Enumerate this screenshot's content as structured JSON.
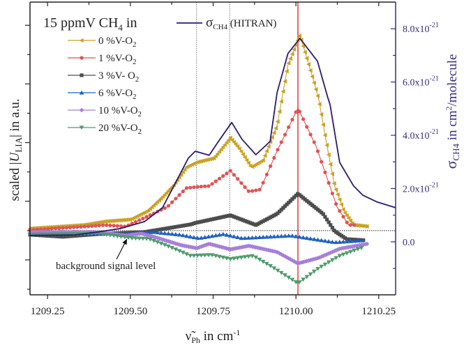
{
  "chart_data": {
    "type": "line",
    "title": "",
    "xlabel": {
      "symbol": "ν̃",
      "sub": "Ph",
      "rest": " in cm",
      "sup": "-1"
    },
    "ylabel_left": {
      "pre": "scaled |",
      "sym": "U",
      "sub": "LIA",
      "post": "| in a.u."
    },
    "ylabel_right": {
      "sym": "σ",
      "sub": "CH4",
      "rest": " in cm",
      "sup": "2",
      "rest2": "/molecule"
    },
    "xlim": [
      1209.197,
      1210.301
    ],
    "ylim_left": [
      -2.19,
      7.79
    ],
    "ylim_right": [
      -1.99,
      9.0
    ],
    "x_ticks": [
      1209.25,
      1209.5,
      1209.75,
      1210.0,
      1210.25
    ],
    "x_tick_labels": [
      "1209.25",
      "1209.50",
      "1209.75",
      "1210.00",
      "1210.25"
    ],
    "right_ticks": [
      0,
      2,
      4,
      6,
      8
    ],
    "right_tick_labels": [
      {
        "base": "0.0",
        "sup": ""
      },
      {
        "base": "2.0x10",
        "sup": "-21"
      },
      {
        "base": "4.0x10",
        "sup": "-21"
      },
      {
        "base": "6.0x10",
        "sup": "-21"
      },
      {
        "base": "8.0x10",
        "sup": "-21"
      }
    ],
    "right_unit_note": "values in 1e-21 cm^2/molecule",
    "background_level": 0,
    "vlines": [
      {
        "x": 1209.7,
        "style": "dotted",
        "color": "#777777"
      },
      {
        "x": 1209.8,
        "style": "dotted",
        "color": "#777777"
      },
      {
        "x": 1210.006,
        "style": "solid",
        "color": "#e8434a"
      }
    ],
    "legend": {
      "heading": {
        "pre": "15 ppmV CH",
        "sub": "4",
        "post": " in"
      },
      "placement": "top-left"
    },
    "annotation": {
      "text": "background signal level",
      "arrow_to": [
        1209.49,
        -0.28
      ]
    },
    "series": [
      {
        "name": "0 %V-O",
        "sub": "2",
        "axis": "left",
        "color": "#c9a227",
        "marker": "triangle-left",
        "x": [
          1209.197,
          1209.359,
          1209.423,
          1209.501,
          1209.555,
          1209.597,
          1209.633,
          1209.669,
          1209.701,
          1209.753,
          1209.802,
          1209.829,
          1209.865,
          1209.901,
          1209.943,
          1209.976,
          1210.012,
          1210.054,
          1210.069,
          1210.092,
          1210.117,
          1210.145,
          1210.174,
          1210.218
        ],
        "y": [
          0.07,
          0.19,
          0.31,
          0.38,
          0.69,
          1.14,
          1.57,
          2.16,
          2.33,
          2.47,
          3.16,
          2.8,
          2.16,
          2.4,
          3.59,
          5.65,
          6.67,
          5.08,
          4.47,
          3.0,
          1.52,
          0.66,
          0.19,
          0.14
        ]
      },
      {
        "name": "1 %V-O",
        "sub": "2",
        "axis": "left",
        "color": "#e05252",
        "marker": "circle",
        "x": [
          1209.197,
          1209.366,
          1209.423,
          1209.486,
          1209.555,
          1209.612,
          1209.669,
          1209.711,
          1209.738,
          1209.802,
          1209.858,
          1209.892,
          1209.943,
          1210.006,
          1210.061,
          1210.09,
          1210.124,
          1210.159,
          1210.181
        ],
        "y": [
          0.02,
          0.14,
          0.19,
          0.14,
          0.5,
          0.81,
          1.45,
          1.5,
          1.52,
          2.04,
          1.33,
          1.4,
          2.71,
          4.18,
          2.87,
          1.92,
          0.81,
          0.19,
          0.19
        ]
      },
      {
        "name": "3 %V- O",
        "sub": "2",
        "axis": "left",
        "color": "#4d4d4d",
        "marker": "square",
        "x": [
          1209.197,
          1209.296,
          1209.402,
          1209.543,
          1209.597,
          1209.682,
          1209.696,
          1209.802,
          1209.879,
          1209.943,
          1210.006,
          1210.082,
          1210.117,
          1210.153,
          1210.208
        ],
        "y": [
          -0.14,
          -0.21,
          -0.12,
          -0.05,
          0.05,
          0.21,
          0.26,
          0.52,
          0.19,
          0.57,
          1.26,
          0.57,
          -0.02,
          -0.29,
          -0.33
        ]
      },
      {
        "name": "6 %V-O",
        "sub": "2",
        "axis": "left",
        "color": "#1f5fbf",
        "marker": "triangle-up",
        "x": [
          1209.197,
          1209.486,
          1209.57,
          1209.648,
          1209.707,
          1209.781,
          1209.837,
          1209.985,
          1210.048,
          1210.117,
          1210.208
        ],
        "y": [
          -0.05,
          -0.1,
          -0.05,
          -0.14,
          -0.26,
          -0.12,
          -0.26,
          -0.17,
          -0.28,
          -0.4,
          -0.33
        ]
      },
      {
        "name": "10 %V-O",
        "sub": "2",
        "axis": "left",
        "color": "#a57fd8",
        "marker": "diamond",
        "x": [
          1209.197,
          1209.402,
          1209.486,
          1209.534,
          1209.585,
          1209.654,
          1209.701,
          1209.738,
          1209.802,
          1209.858,
          1209.943,
          1210.006,
          1210.069,
          1210.132,
          1210.216
        ],
        "y": [
          -0.05,
          -0.05,
          -0.17,
          -0.1,
          -0.26,
          -0.5,
          -0.6,
          -0.45,
          -0.64,
          -0.52,
          -0.73,
          -1.12,
          -0.93,
          -0.62,
          -0.45
        ]
      },
      {
        "name": "20 %V-O",
        "sub": "2",
        "axis": "left",
        "color": "#4e9a6b",
        "marker": "triangle-down",
        "x": [
          1209.197,
          1209.402,
          1209.507,
          1209.555,
          1209.612,
          1209.682,
          1209.745,
          1209.802,
          1209.871,
          1209.928,
          1210.006,
          1210.069,
          1210.132,
          1210.202
        ],
        "y": [
          -0.14,
          -0.1,
          -0.26,
          -0.28,
          -0.52,
          -0.86,
          -0.83,
          -0.97,
          -0.86,
          -1.24,
          -1.8,
          -1.28,
          -0.86,
          -0.57
        ]
      },
      {
        "name": "σ",
        "sub": "CH4",
        "suffix": " (HITRAN)",
        "axis": "right",
        "color": "#2b1a6e",
        "marker": "none",
        "x": [
          1209.197,
          1209.332,
          1209.402,
          1209.471,
          1209.543,
          1209.597,
          1209.639,
          1209.675,
          1209.696,
          1209.738,
          1209.766,
          1209.806,
          1209.837,
          1209.879,
          1209.922,
          1209.943,
          1209.976,
          1210.012,
          1210.065,
          1210.096,
          1210.103,
          1210.132,
          1210.174,
          1210.202,
          1210.244,
          1210.301
        ],
        "y": [
          0.24,
          0.26,
          0.37,
          0.5,
          0.76,
          1.28,
          2.28,
          3.14,
          3.4,
          3.25,
          3.77,
          4.48,
          3.85,
          3.27,
          3.77,
          5.6,
          7.07,
          7.64,
          6.78,
          5.42,
          5.16,
          2.98,
          2.1,
          1.75,
          1.5,
          1.28
        ]
      }
    ]
  }
}
